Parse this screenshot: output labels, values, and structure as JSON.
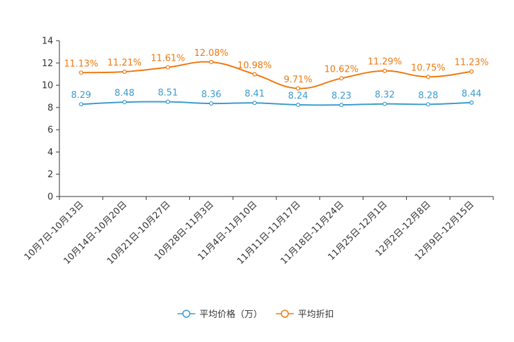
{
  "chart_data": {
    "type": "line",
    "title": "",
    "xlabel": "",
    "ylabel": "",
    "ylim": [
      0,
      14
    ],
    "yticks": [
      "0",
      "2",
      "4",
      "6",
      "8",
      "10",
      "12",
      "14"
    ],
    "categories": [
      "10月7日-10月13日",
      "10月14日-10月20日",
      "10月21日-10月27日",
      "10月28日-11月3日",
      "11月4日-11月10日",
      "11月11日-11月17日",
      "11月18日-11月24日",
      "11月25日-12月1日",
      "12月2日-12月8日",
      "12月9日-12月15日"
    ],
    "series": [
      {
        "name": "平均价格（万）",
        "color": "#3a9ccf",
        "values": [
          8.29,
          8.48,
          8.51,
          8.36,
          8.41,
          8.24,
          8.23,
          8.32,
          8.28,
          8.44
        ],
        "labels": [
          "8.29",
          "8.48",
          "8.51",
          "8.36",
          "8.41",
          "8.24",
          "8.23",
          "8.32",
          "8.28",
          "8.44"
        ]
      },
      {
        "name": "平均折扣",
        "color": "#f0780e",
        "values": [
          11.13,
          11.21,
          11.61,
          12.08,
          10.98,
          9.71,
          10.62,
          11.29,
          10.75,
          11.23
        ],
        "labels": [
          "11.13%",
          "11.21%",
          "11.61%",
          "12.08%",
          "10.98%",
          "9.71%",
          "10.62%",
          "11.29%",
          "10.75%",
          "11.23%"
        ]
      }
    ],
    "legend": {
      "position": "bottom-center"
    }
  }
}
